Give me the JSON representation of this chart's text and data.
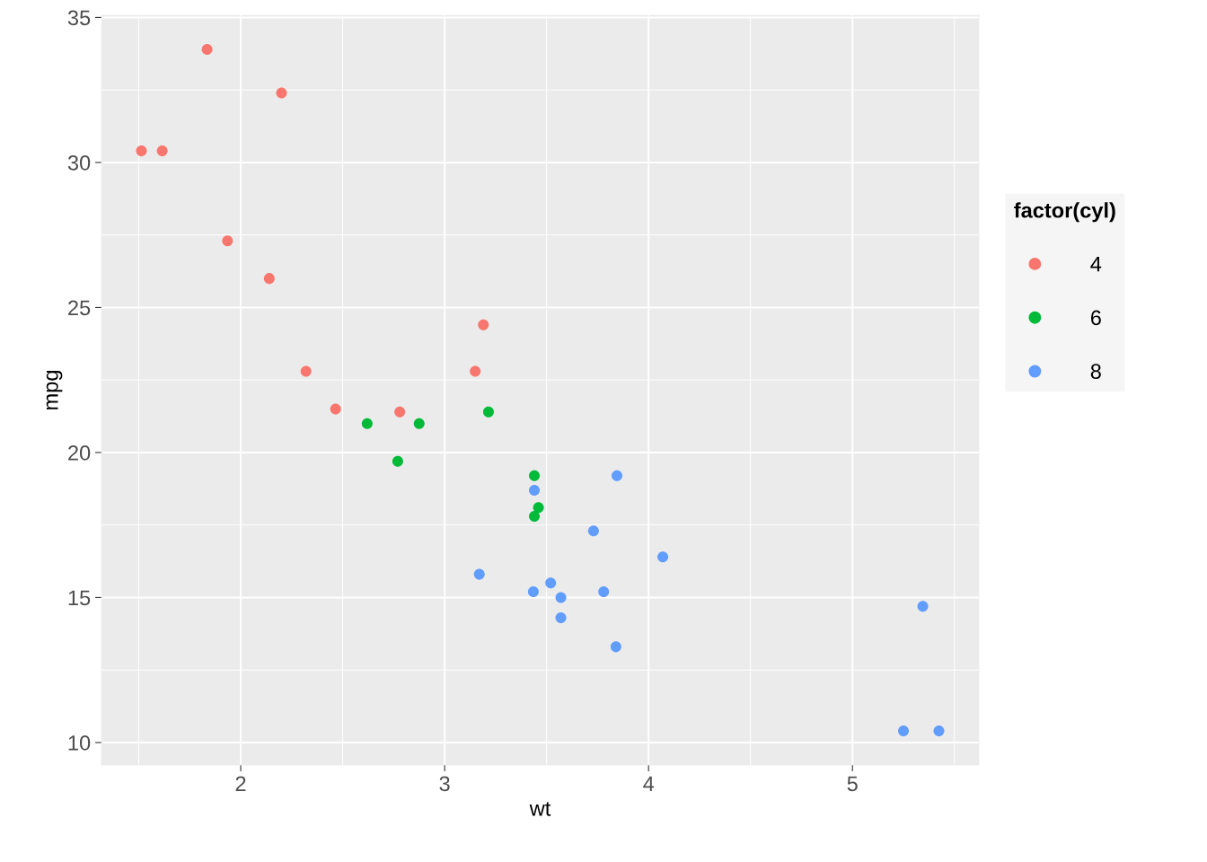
{
  "chart_data": {
    "type": "scatter",
    "xlabel": "wt",
    "ylabel": "mpg",
    "legend_title": "factor(cyl)",
    "xlim": [
      1.317,
      5.62
    ],
    "ylim": [
      9.225,
      35.075
    ],
    "xticks": [
      2,
      3,
      4,
      5
    ],
    "yticks": [
      10,
      15,
      20,
      25,
      30,
      35
    ],
    "grid": true,
    "legend": "right",
    "marker": "circle",
    "series": [
      {
        "name": "4",
        "color": "#f8766d",
        "x": [
          2.32,
          3.19,
          3.15,
          2.2,
          1.615,
          1.835,
          2.465,
          1.935,
          2.14,
          1.513,
          2.78
        ],
        "values": [
          22.8,
          24.4,
          22.8,
          32.4,
          30.4,
          33.9,
          21.5,
          27.3,
          26.0,
          30.4,
          21.4
        ]
      },
      {
        "name": "6",
        "color": "#00ba38",
        "x": [
          2.62,
          2.875,
          3.215,
          3.46,
          3.44,
          3.44,
          2.77
        ],
        "values": [
          21.0,
          21.0,
          21.4,
          18.1,
          19.2,
          17.8,
          19.7
        ]
      },
      {
        "name": "8",
        "color": "#619cff",
        "x": [
          3.44,
          3.57,
          4.07,
          3.73,
          3.78,
          5.25,
          5.424,
          5.345,
          3.52,
          3.435,
          3.84,
          3.845,
          3.17,
          3.57
        ],
        "values": [
          18.7,
          14.3,
          16.4,
          17.3,
          15.2,
          10.4,
          10.4,
          14.7,
          15.5,
          15.2,
          13.3,
          19.2,
          15.8,
          15.0
        ]
      }
    ]
  }
}
